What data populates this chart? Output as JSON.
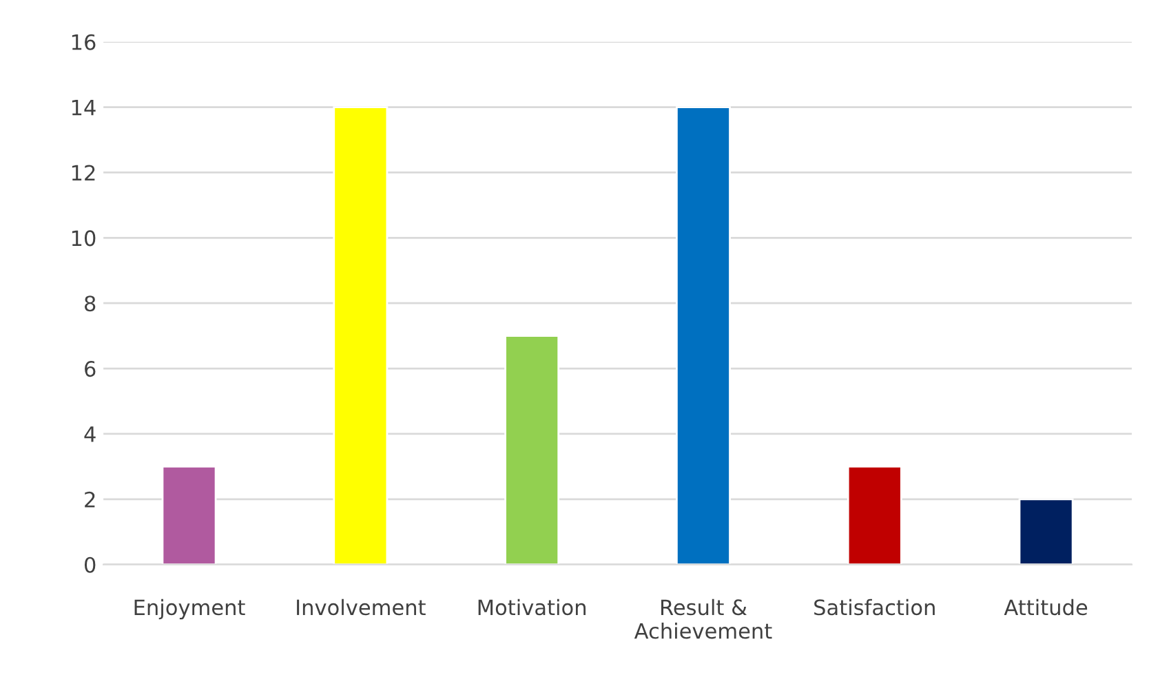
{
  "chart_data": {
    "type": "bar",
    "categories": [
      "Enjoyment",
      "Involvement",
      "Motivation",
      "Result &\nAchievement",
      "Satisfaction",
      "Attitude"
    ],
    "values": [
      3,
      14,
      7,
      14,
      3,
      2
    ],
    "colors": [
      "#b05a9f",
      "#ffff00",
      "#92d050",
      "#0070c0",
      "#c00000",
      "#002060"
    ],
    "ylim": [
      0,
      16
    ],
    "yticks": [
      0,
      2,
      4,
      6,
      8,
      10,
      12,
      14,
      16
    ],
    "grid": "y",
    "legend": false
  }
}
